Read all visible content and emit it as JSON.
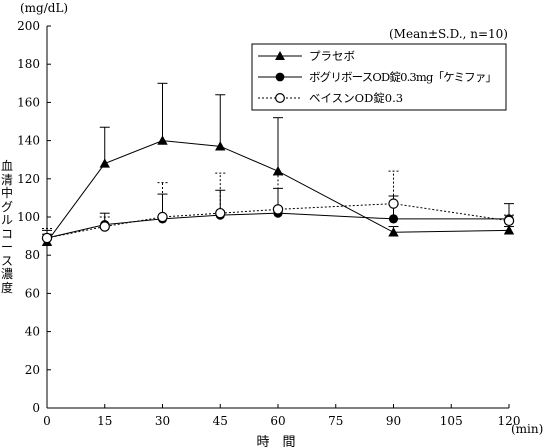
{
  "chart_data": {
    "type": "line",
    "title": "",
    "y_unit": "(mg/dL)",
    "x_unit": "(min)",
    "xlabel": "時　間",
    "ylabel": "血清中グルコース濃度",
    "note": "(Mean±S.D., n=10)",
    "xlim": [
      0,
      120
    ],
    "ylim": [
      0,
      200
    ],
    "x_ticks": [
      0,
      15,
      30,
      45,
      60,
      75,
      90,
      105,
      120
    ],
    "y_ticks": [
      0,
      20,
      40,
      60,
      80,
      100,
      120,
      140,
      160,
      180,
      200
    ],
    "legend_position": "top-right",
    "grid": false,
    "series": [
      {
        "name": "プラセボ",
        "marker": "filled-triangle",
        "line": "solid",
        "x": [
          0,
          15,
          30,
          45,
          60,
          90,
          120
        ],
        "y": [
          87,
          128,
          140,
          137,
          124,
          92,
          93
        ],
        "sd": [
          4,
          19,
          30,
          27,
          28,
          3,
          2
        ]
      },
      {
        "name": "ボグリボースOD錠0.3mg「ケミファ」",
        "marker": "filled-circle",
        "line": "solid",
        "x": [
          0,
          15,
          30,
          45,
          60,
          90,
          120
        ],
        "y": [
          89,
          96,
          99,
          101,
          102,
          99,
          99
        ],
        "sd": [
          4,
          6,
          13,
          13,
          13,
          12,
          8
        ]
      },
      {
        "name": "ベイスンOD錠0.3",
        "marker": "open-circle",
        "line": "dotted",
        "x": [
          0,
          15,
          30,
          45,
          60,
          90,
          120
        ],
        "y": [
          89,
          95,
          100,
          102,
          104,
          107,
          98
        ],
        "sd": [
          5,
          5,
          18,
          21,
          18,
          17,
          3
        ]
      }
    ]
  }
}
